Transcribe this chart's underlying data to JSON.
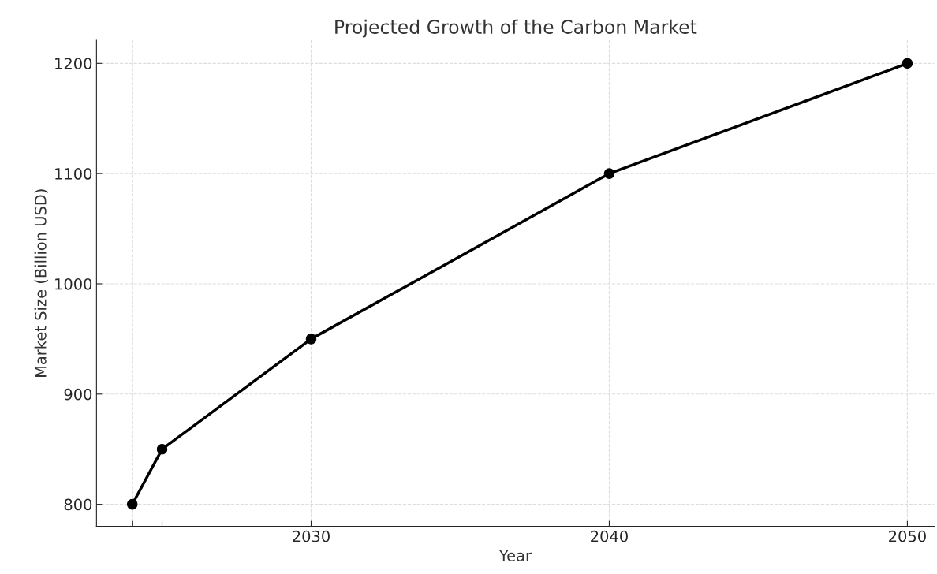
{
  "chart_data": {
    "type": "line",
    "title": "Projected Growth of the Carbon Market",
    "xlabel": "Year",
    "ylabel": "Market Size (Billion USD)",
    "x": [
      2024,
      2025,
      2030,
      2040,
      2050
    ],
    "series": [
      {
        "color": "#000000",
        "values": [
          800,
          850,
          950,
          1100,
          1200
        ]
      }
    ],
    "xlim": [
      2022.8,
      2050.9
    ],
    "xticks": [
      {
        "value": 2024,
        "label": null
      },
      {
        "value": 2025,
        "label": null
      },
      2030,
      2040,
      2050
    ],
    "ylim": [
      780,
      1221
    ],
    "yticks": [
      800,
      900,
      1000,
      1100,
      1200
    ],
    "grid": true,
    "marker": "circle",
    "line_style": "solid"
  }
}
